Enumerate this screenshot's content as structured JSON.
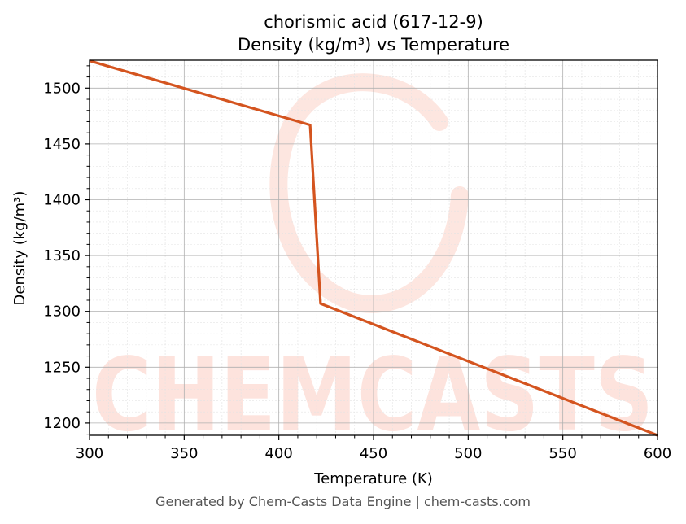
{
  "chart_data": {
    "type": "line",
    "title_line1": "chorismic acid (617-12-9)",
    "title_line2": "Density (kg/m³) vs Temperature",
    "xlabel": "Temperature (K)",
    "ylabel": "Density (kg/m³)",
    "xlim": [
      300,
      600
    ],
    "ylim": [
      1189,
      1525
    ],
    "x_ticks": [
      300,
      350,
      400,
      450,
      500,
      550,
      600
    ],
    "y_ticks": [
      1200,
      1250,
      1300,
      1350,
      1400,
      1450,
      1500
    ],
    "grid": true,
    "series": [
      {
        "color": "#d4541f",
        "x": [
          300,
          416.5,
          422,
          600
        ],
        "y": [
          1524.5,
          1467,
          1307,
          1189
        ]
      }
    ]
  },
  "watermark": {
    "text": "CHEMCASTS",
    "color": "#fde3dd"
  },
  "footer": "Generated by Chem-Casts Data Engine | chem-casts.com"
}
